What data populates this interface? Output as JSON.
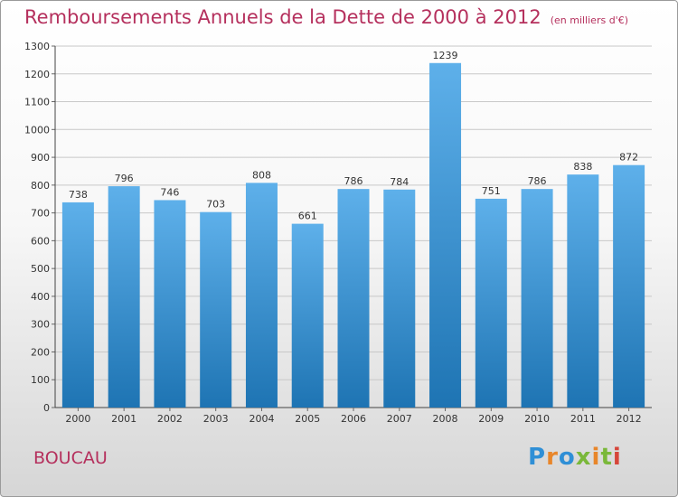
{
  "header": {
    "title": "Remboursements Annuels de la Dette de 2000 à 2012",
    "unit": "(en milliers d'€)"
  },
  "footer": {
    "commune": "BOUCAU",
    "logo": "Proxiti"
  },
  "colors": {
    "title": "#b5305d",
    "bar_top": "#5eb0ea",
    "bar_bottom": "#1e74b3",
    "logo_letters": [
      "#2f8fd6",
      "#e8862a",
      "#2f8fd6",
      "#7ab83a",
      "#e8862a",
      "#7ab83a",
      "#d6463a"
    ]
  },
  "chart_data": {
    "type": "bar",
    "categories": [
      "2000",
      "2001",
      "2002",
      "2003",
      "2004",
      "2005",
      "2006",
      "2007",
      "2008",
      "2009",
      "2010",
      "2011",
      "2012"
    ],
    "values": [
      738,
      796,
      746,
      703,
      808,
      661,
      786,
      784,
      1239,
      751,
      786,
      838,
      872
    ],
    "ylim": [
      0,
      1300
    ],
    "yticks": [
      0,
      100,
      200,
      300,
      400,
      500,
      600,
      700,
      800,
      900,
      1000,
      1100,
      1200,
      1300
    ],
    "grid": true,
    "data_labels": true
  }
}
